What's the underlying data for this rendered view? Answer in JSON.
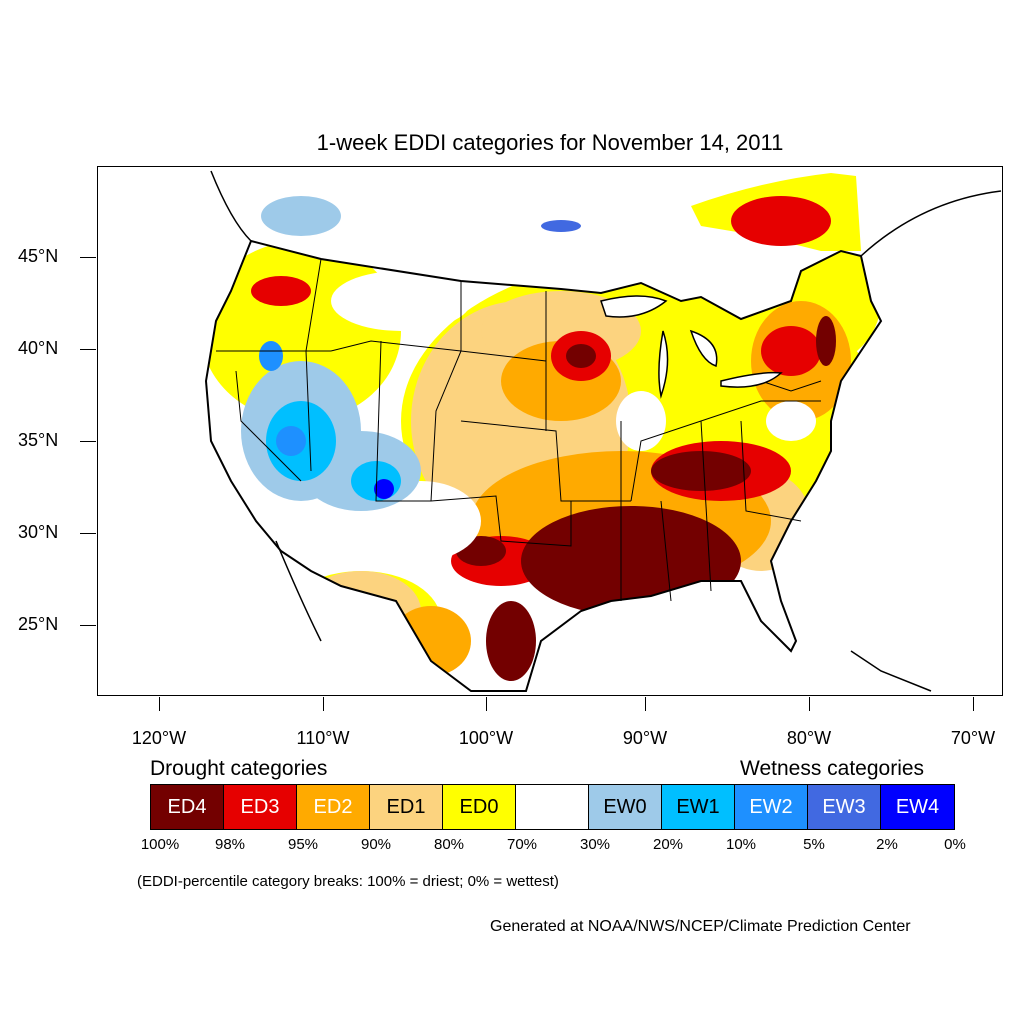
{
  "title": "1-week EDDI categories for November 14, 2011",
  "latitude_labels": [
    "45°N",
    "40°N",
    "35°N",
    "30°N",
    "25°N"
  ],
  "longitude_labels": [
    "120°W",
    "110°W",
    "100°W",
    "90°W",
    "80°W",
    "70°W"
  ],
  "legend": {
    "drought_heading": "Drought categories",
    "wetness_heading": "Wetness categories",
    "categories": [
      {
        "label": "ED4",
        "color": "#730000",
        "text_color": "#ffffff"
      },
      {
        "label": "ED3",
        "color": "#e60000",
        "text_color": "#ffffff"
      },
      {
        "label": "ED2",
        "color": "#ffaa00",
        "text_color": "#ffffff"
      },
      {
        "label": "ED1",
        "color": "#fcd37f",
        "text_color": "#000000"
      },
      {
        "label": "ED0",
        "color": "#ffff00",
        "text_color": "#000000"
      },
      {
        "label": "",
        "color": "#ffffff",
        "text_color": "#000000"
      },
      {
        "label": "EW0",
        "color": "#9ecae9",
        "text_color": "#000000"
      },
      {
        "label": "EW1",
        "color": "#00bfff",
        "text_color": "#000000"
      },
      {
        "label": "EW2",
        "color": "#1e90ff",
        "text_color": "#ffffff"
      },
      {
        "label": "EW3",
        "color": "#4169e1",
        "text_color": "#ffffff"
      },
      {
        "label": "EW4",
        "color": "#0000ff",
        "text_color": "#ffffff"
      }
    ],
    "breaks": [
      "100%",
      "98%",
      "95%",
      "90%",
      "80%",
      "70%",
      "30%",
      "20%",
      "10%",
      "5%",
      "2%",
      "0%"
    ]
  },
  "note": "(EDDI-percentile category breaks: 100% = driest; 0% = wettest)",
  "credit": "Generated at NOAA/NWS/NCEP/Climate Prediction Center"
}
